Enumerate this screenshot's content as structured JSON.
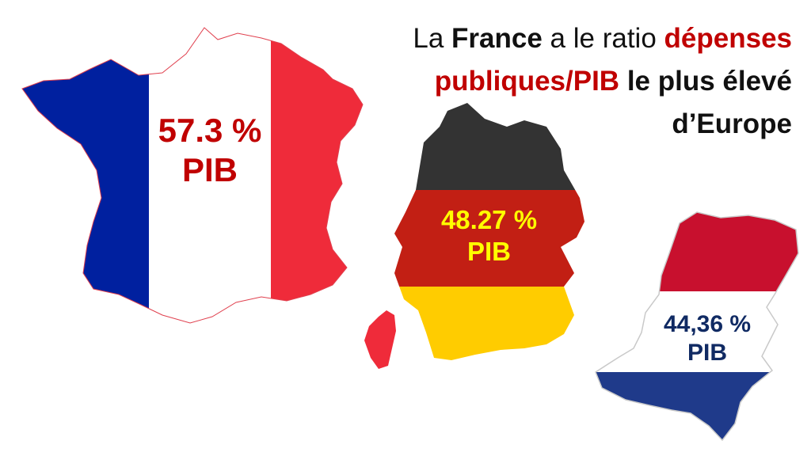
{
  "headline": {
    "part1": "La ",
    "part2": "France",
    "part3": " a le ratio ",
    "part4": "dépenses publiques/PIB",
    "part5": " le plus élevé d’Europe"
  },
  "countries": {
    "france": {
      "value": "57.3 %",
      "unit": "PIB",
      "label_color": "#c00000",
      "flag_colors": [
        "#00209f",
        "#ffffff",
        "#ef2b3a"
      ]
    },
    "germany": {
      "value": "48.27 %",
      "unit": "PIB",
      "label_color": "#ffff00",
      "flag_colors": [
        "#333333",
        "#c21f14",
        "#ffcc00"
      ]
    },
    "netherlands": {
      "value": "44,36 %",
      "unit": "PIB",
      "label_color": "#102a63",
      "flag_colors": [
        "#c8102e",
        "#ffffff",
        "#1f3a8a"
      ]
    }
  },
  "icons": [
    "france-map-icon",
    "germany-map-icon",
    "netherlands-map-icon",
    "corsica-map-icon"
  ]
}
